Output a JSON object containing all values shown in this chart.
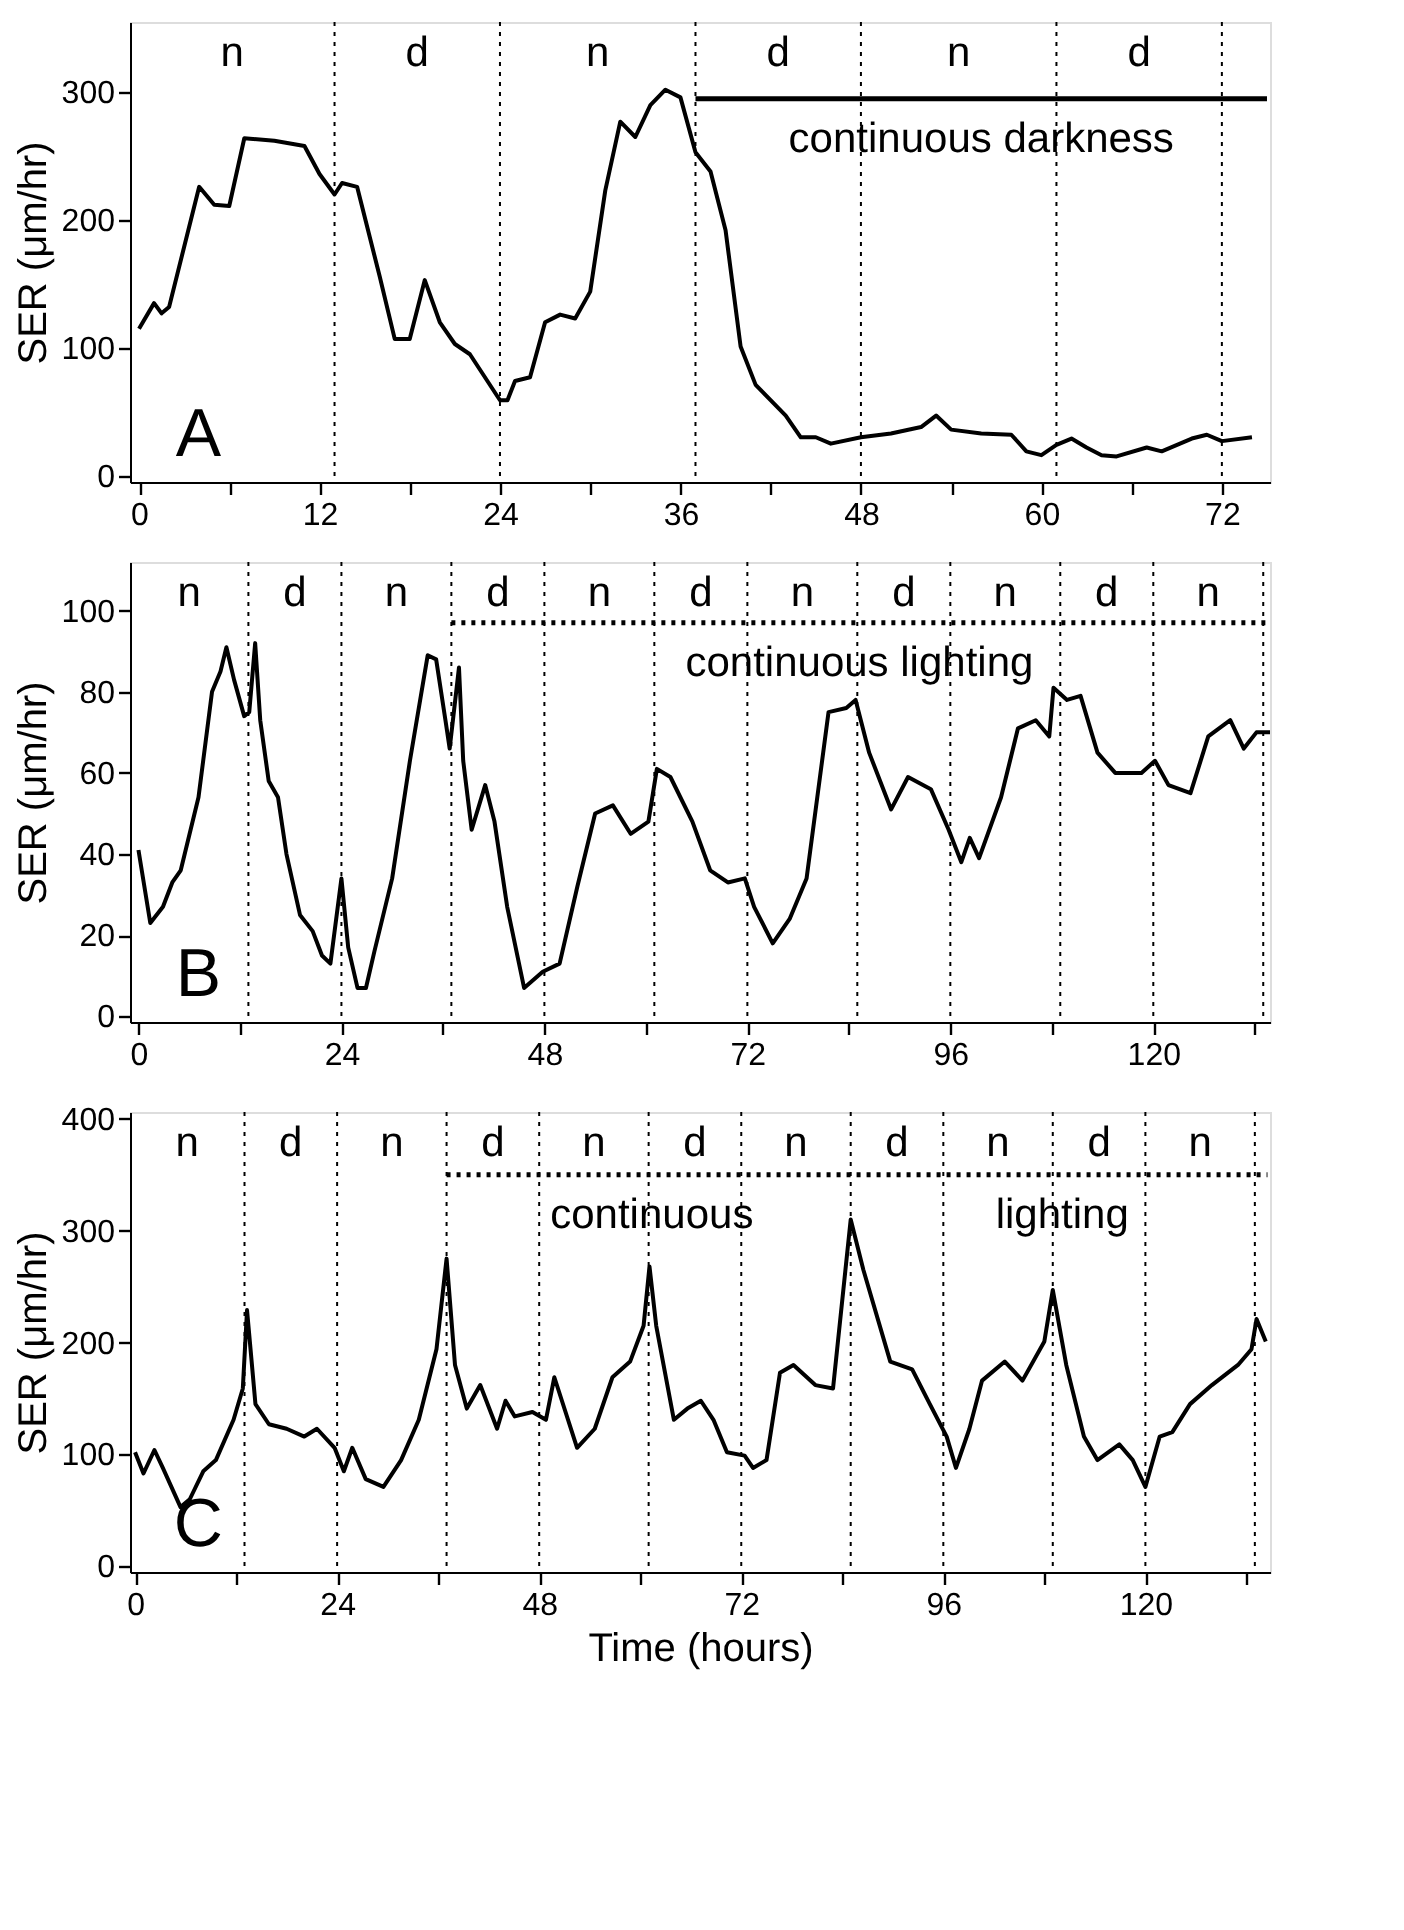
{
  "chart_data": [
    {
      "type": "line",
      "ylabel": "SER (μm/hr)",
      "xlim": [
        -0.6,
        75.2
      ],
      "ylim": [
        -5,
        355
      ],
      "xticks": [
        0,
        {
          "value": 6,
          "label": null
        },
        12,
        {
          "value": 18,
          "label": null
        },
        24,
        {
          "value": 30,
          "label": null
        },
        36,
        {
          "value": 42,
          "label": null
        },
        48,
        {
          "value": 54,
          "label": null
        },
        60,
        {
          "value": 66,
          "label": null
        },
        72
      ],
      "yticks": [
        0,
        100,
        200,
        300
      ],
      "grid": false,
      "x": [
        0,
        1,
        1.5,
        2,
        4,
        5,
        6,
        7,
        9,
        11,
        12,
        13,
        13.5,
        14.5,
        16,
        17,
        18,
        19,
        20,
        21,
        22,
        24,
        24.5,
        25,
        26,
        27,
        28,
        29,
        30,
        31,
        32,
        33,
        34,
        35,
        36,
        37,
        38,
        39,
        40,
        41,
        43,
        44,
        45,
        46,
        48,
        50,
        52,
        53,
        54,
        56,
        58,
        59,
        60,
        61,
        62,
        63,
        64,
        65,
        67,
        68,
        70,
        71,
        72,
        74
      ],
      "series": [
        {
          "color": "#000000",
          "values": [
            115,
            135,
            127,
            132,
            226,
            212,
            211,
            264,
            262,
            258,
            236,
            220,
            229,
            226,
            156,
            107,
            107,
            153,
            120,
            103,
            95,
            59,
            59,
            74,
            77,
            120,
            126,
            123,
            144,
            223,
            277,
            265,
            290,
            302,
            296,
            253,
            238,
            192,
            101,
            71,
            47,
            30,
            30,
            25,
            30,
            33,
            38,
            47,
            36,
            33,
            32,
            19,
            16,
            24,
            29,
            22,
            16,
            15,
            22,
            19,
            29,
            32,
            27,
            30
          ]
        },
        {
          "type": "line",
          "line_style": "solid",
          "color": "#000000",
          "x": [
            37,
            75
          ],
          "values": [
            295,
            295
          ]
        }
      ],
      "ref_lines": [
        {
          "axis": "x",
          "value": 13,
          "line_style": "dotted"
        },
        {
          "axis": "x",
          "value": 24,
          "line_style": "dotted"
        },
        {
          "axis": "x",
          "value": 37,
          "line_style": "dotted"
        },
        {
          "axis": "x",
          "value": 48,
          "line_style": "dotted"
        },
        {
          "axis": "x",
          "value": 61,
          "line_style": "dotted"
        },
        {
          "axis": "x",
          "value": 72,
          "line_style": "dotted"
        }
      ],
      "annotations": [
        "A",
        "n",
        "d",
        "n",
        "d",
        "n",
        "d",
        "continuous darkness"
      ]
    },
    {
      "type": "line",
      "ylabel": "SER (μm/hr)",
      "xlim": [
        -1,
        133.8
      ],
      "ylim": [
        -1.4,
        112
      ],
      "xticks": [
        0,
        {
          "value": 12,
          "label": null
        },
        24,
        {
          "value": 36,
          "label": null
        },
        48,
        {
          "value": 60,
          "label": null
        },
        72,
        {
          "value": 84,
          "label": null
        },
        96,
        {
          "value": 108,
          "label": null
        },
        120,
        {
          "value": 132,
          "label": null
        }
      ],
      "yticks": [
        0,
        20,
        40,
        60,
        80,
        100
      ],
      "grid": false,
      "x": [
        0,
        1.4,
        2.9,
        4,
        5,
        7.1,
        8.7,
        9.7,
        10.4,
        11.3,
        12.5,
        13.1,
        13.8,
        14.4,
        15.4,
        16.5,
        17.5,
        19.1,
        20.6,
        21.7,
        22.7,
        24,
        24.8,
        25.9,
        26.9,
        27.9,
        30,
        32.1,
        34.2,
        35.2,
        36.3,
        36.8,
        37.9,
        38.4,
        39.4,
        41,
        42.1,
        43.6,
        45.6,
        47.8,
        49.8,
        51.9,
        54,
        56.1,
        58.2,
        60.3,
        61.3,
        62.9,
        65.5,
        67.6,
        69.7,
        71.7,
        72.8,
        75,
        77,
        79,
        81.6,
        83.7,
        84.8,
        86.4,
        89,
        91,
        93.7,
        95.8,
        97.3,
        98.3,
        99.4,
        102,
        104,
        106.1,
        107.7,
        108.2,
        109.8,
        111.4,
        113.4,
        115.5,
        118.6,
        120.2,
        121.8,
        124.4,
        126.5,
        129.1,
        130.7,
        132.2,
        133.8
      ],
      "series": [
        {
          "color": "#000000",
          "values": [
            41,
            23,
            27,
            33,
            36,
            54,
            80,
            85,
            91,
            83,
            74,
            75,
            92,
            73,
            58,
            54,
            40,
            25,
            21,
            15,
            13,
            34,
            17,
            7,
            7,
            16,
            34,
            63,
            89,
            88,
            73,
            66,
            86,
            63,
            46,
            57,
            48,
            27,
            7,
            11,
            13,
            32,
            50,
            52,
            45,
            48,
            61,
            59,
            48,
            36,
            33,
            34,
            27,
            18,
            24,
            34,
            75,
            76,
            78,
            65,
            51,
            59,
            56,
            46,
            38,
            44,
            39,
            54,
            71,
            73,
            69,
            81,
            78,
            79,
            65,
            60,
            60,
            63,
            57,
            55,
            69,
            73,
            66,
            70,
            70
          ]
        },
        {
          "type": "line",
          "line_style": "dotted",
          "color": "#000000",
          "x": [
            37,
            133.5
          ],
          "values": [
            97,
            97
          ]
        }
      ],
      "ref_lines": [
        {
          "axis": "x",
          "value": 13,
          "line_style": "dotted"
        },
        {
          "axis": "x",
          "value": 24,
          "line_style": "dotted"
        },
        {
          "axis": "x",
          "value": 37,
          "line_style": "dotted"
        },
        {
          "axis": "x",
          "value": 48,
          "line_style": "dotted"
        },
        {
          "axis": "x",
          "value": 61,
          "line_style": "dotted"
        },
        {
          "axis": "x",
          "value": 72,
          "line_style": "dotted"
        },
        {
          "axis": "x",
          "value": 85,
          "line_style": "dotted"
        },
        {
          "axis": "x",
          "value": 96,
          "line_style": "dotted"
        },
        {
          "axis": "x",
          "value": 109,
          "line_style": "dotted"
        },
        {
          "axis": "x",
          "value": 120,
          "line_style": "dotted"
        },
        {
          "axis": "x",
          "value": 133,
          "line_style": "dotted"
        }
      ],
      "annotations": [
        "B",
        "n",
        "d",
        "n",
        "d",
        "n",
        "d",
        "n",
        "d",
        "n",
        "d",
        "n",
        "continuous lighting"
      ]
    },
    {
      "type": "line",
      "xlabel": "Time (hours)",
      "ylabel": "SER (μm/hr)",
      "xlim": [
        -0.6,
        134.8
      ],
      "ylim": [
        -5,
        406
      ],
      "xticks": [
        0,
        {
          "value": 12,
          "label": null
        },
        24,
        {
          "value": 36,
          "label": null
        },
        48,
        {
          "value": 60,
          "label": null
        },
        72,
        {
          "value": 84,
          "label": null
        },
        96,
        {
          "value": 108,
          "label": null
        },
        120,
        {
          "value": 132,
          "label": null
        }
      ],
      "yticks": [
        0,
        100,
        200,
        300,
        400
      ],
      "grid": false,
      "x": [
        0,
        1,
        2.3,
        3.3,
        5.4,
        6.5,
        8.1,
        9.6,
        11.7,
        12.8,
        13.3,
        14.3,
        15.9,
        18,
        20.1,
        21.6,
        23.7,
        24.8,
        25.8,
        27.4,
        29.5,
        31.6,
        33.7,
        35.8,
        37,
        38,
        39.4,
        41,
        43,
        44,
        45.1,
        47.2,
        48.8,
        49.8,
        52.5,
        54.6,
        56.7,
        58.8,
        60.4,
        61.1,
        61.9,
        64,
        65.6,
        67.2,
        68.7,
        70.3,
        72.4,
        73.4,
        75,
        76.6,
        78.2,
        80.8,
        82.9,
        85,
        86.5,
        89.7,
        92.3,
        94.4,
        96.4,
        97.5,
        99.1,
        100.6,
        103.3,
        105.4,
        108,
        109,
        110.6,
        112.7,
        114.3,
        116.9,
        118.5,
        120,
        121.7,
        123.2,
        125.3,
        127.9,
        131,
        132.6,
        133.2,
        134.3
      ],
      "series": [
        {
          "color": "#000000",
          "values": [
            102,
            83,
            104,
            88,
            53,
            60,
            85,
            95,
            131,
            159,
            229,
            145,
            127,
            123,
            116,
            123,
            106,
            85,
            106,
            78,
            71,
            95,
            131,
            194,
            275,
            180,
            141,
            162,
            123,
            148,
            134,
            138,
            131,
            169,
            106,
            123,
            169,
            183,
            215,
            268,
            215,
            131,
            141,
            148,
            131,
            102,
            99,
            88,
            95,
            173,
            180,
            162,
            159,
            310,
            265,
            183,
            176,
            145,
            116,
            88,
            123,
            166,
            183,
            166,
            201,
            247,
            180,
            116,
            95,
            109,
            95,
            71,
            116,
            120,
            145,
            162,
            180,
            194,
            221,
            201
          ]
        },
        {
          "type": "line",
          "line_style": "dotted",
          "color": "#000000",
          "x": [
            37,
            134.5
          ],
          "values": [
            350,
            350
          ]
        }
      ],
      "ref_lines": [
        {
          "axis": "x",
          "value": 13,
          "line_style": "dotted"
        },
        {
          "axis": "x",
          "value": 24,
          "line_style": "dotted"
        },
        {
          "axis": "x",
          "value": 37,
          "line_style": "dotted"
        },
        {
          "axis": "x",
          "value": 48,
          "line_style": "dotted"
        },
        {
          "axis": "x",
          "value": 61,
          "line_style": "dotted"
        },
        {
          "axis": "x",
          "value": 72,
          "line_style": "dotted"
        },
        {
          "axis": "x",
          "value": 85,
          "line_style": "dotted"
        },
        {
          "axis": "x",
          "value": 96,
          "line_style": "dotted"
        },
        {
          "axis": "x",
          "value": 109,
          "line_style": "dotted"
        },
        {
          "axis": "x",
          "value": 120,
          "line_style": "dotted"
        },
        {
          "axis": "x",
          "value": 133,
          "line_style": "dotted"
        }
      ],
      "annotations": [
        "C",
        "n",
        "d",
        "n",
        "d",
        "n",
        "d",
        "n",
        "d",
        "n",
        "d",
        "n",
        "continuous",
        "lighting"
      ]
    }
  ]
}
